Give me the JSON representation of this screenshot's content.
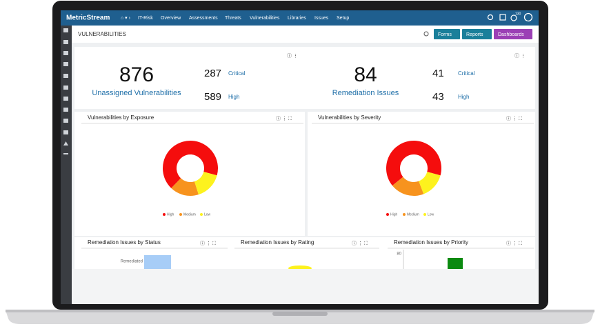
{
  "nav": {
    "brand": "MetricStream",
    "breadcrumb": "IT-Risk",
    "items": [
      "Overview",
      "Assessments",
      "Threats",
      "Vulnerabilities",
      "Libraries",
      "Issues",
      "Setup"
    ],
    "badge": "130"
  },
  "header": {
    "title": "VULNERABILITIES",
    "buttons": [
      "Forms",
      "Reports",
      "Dashboards"
    ]
  },
  "stats": [
    {
      "value": "876",
      "label": "Unassigned Vulnerabilities",
      "breakdown": [
        {
          "value": "287",
          "label": "Critical"
        },
        {
          "value": "589",
          "label": "High"
        }
      ]
    },
    {
      "value": "84",
      "label": "Remediation Issues",
      "breakdown": [
        {
          "value": "41",
          "label": "Critical"
        },
        {
          "value": "43",
          "label": "High"
        }
      ]
    }
  ],
  "chart_data": [
    {
      "type": "donut",
      "title": "Vulnerabilities by Exposure",
      "categories": [
        "High",
        "Medium",
        "Low"
      ],
      "values": [
        67,
        17,
        16
      ],
      "colors": [
        "#f50d0d",
        "#f7931e",
        "#fdf21e"
      ]
    },
    {
      "type": "donut",
      "title": "Vulnerabilities by Severity",
      "categories": [
        "High",
        "Medium",
        "Low"
      ],
      "values": [
        65,
        20,
        15
      ],
      "colors": [
        "#f50d0d",
        "#f7931e",
        "#fdf21e"
      ]
    }
  ],
  "bottom_panels": [
    {
      "title": "Remediation Issues by Status",
      "category": "Remediated"
    },
    {
      "title": "Remediation Issues by Rating"
    },
    {
      "title": "Remediation Issues by Priority",
      "tick": "80"
    }
  ]
}
